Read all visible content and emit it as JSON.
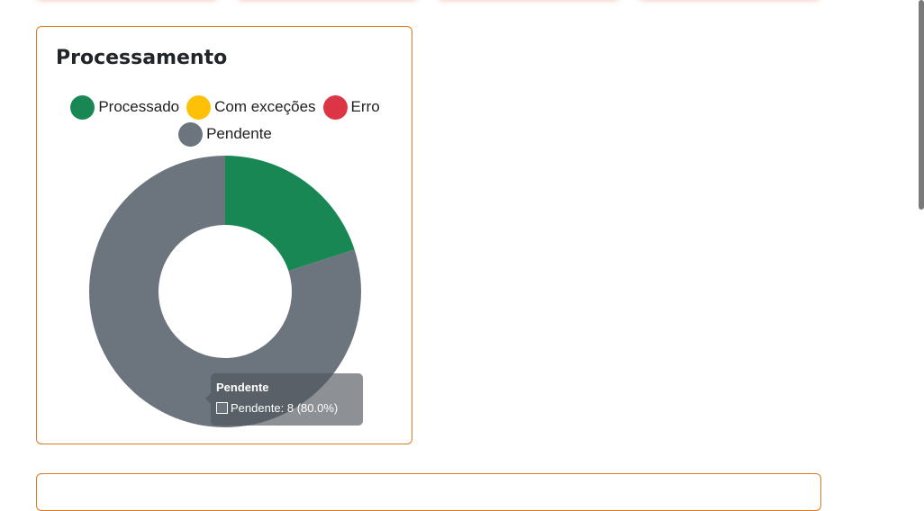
{
  "card": {
    "title": "Processamento"
  },
  "chart_data": {
    "type": "pie",
    "variant": "doughnut",
    "categories": [
      "Processado",
      "Com exceções",
      "Erro",
      "Pendente"
    ],
    "values": [
      2,
      0,
      0,
      8
    ],
    "colors": [
      "#198754",
      "#ffc107",
      "#dc3545",
      "#6c757d"
    ],
    "legend": "top"
  },
  "tooltip": {
    "title": "Pendente",
    "label": "Pendente: 8 (80.0%)"
  }
}
